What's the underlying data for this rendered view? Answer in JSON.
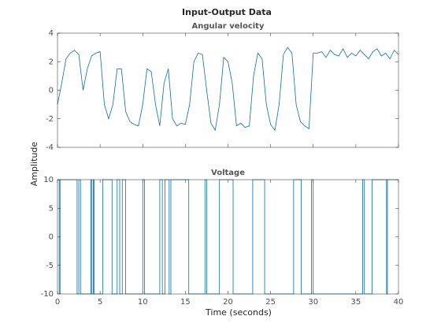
{
  "title": "Input-Output Data",
  "ylabel": "Amplitude",
  "xlabel": "Time (seconds)",
  "chart_data": [
    {
      "type": "line",
      "title": "Angular velocity",
      "color": "#0b6ea8",
      "x": [
        0,
        0.5,
        1,
        1.5,
        2,
        2.5,
        3,
        3.5,
        4,
        4.5,
        5,
        5.5,
        6,
        6.5,
        7,
        7.5,
        8,
        8.5,
        9,
        9.5,
        10,
        10.5,
        11,
        11.5,
        12,
        12.5,
        13,
        13.5,
        14,
        14.5,
        15,
        15.5,
        16,
        16.5,
        17,
        17.5,
        18,
        18.5,
        19,
        19.5,
        20,
        20.5,
        21,
        21.5,
        22,
        22.5,
        23,
        23.5,
        24,
        24.5,
        25,
        25.5,
        26,
        26.5,
        27,
        27.5,
        28,
        28.5,
        29,
        29.5,
        30,
        30.5,
        31,
        31.5,
        32,
        32.5,
        33,
        33.5,
        34,
        34.5,
        35,
        35.5,
        36,
        36.5,
        37,
        37.5,
        38,
        38.5,
        39,
        39.5,
        40
      ],
      "values": [
        -1,
        0.5,
        2.2,
        2.6,
        2.8,
        2.5,
        0,
        1.5,
        2.4,
        2.6,
        2.7,
        -1,
        -2,
        -1,
        1.5,
        1.5,
        -1.5,
        -2.2,
        -2.4,
        -2.5,
        -1,
        1.5,
        1.3,
        -1,
        -2.5,
        0.5,
        1.5,
        -2,
        -2.5,
        -2.3,
        -2.4,
        -1,
        2,
        2.6,
        2.5,
        0,
        -2.3,
        -2.8,
        -1,
        2.3,
        2,
        0.5,
        -2.5,
        -2.3,
        -2.6,
        -2.5,
        1,
        2.6,
        2.2,
        -1,
        -2.4,
        -2.8,
        -1,
        2.5,
        3,
        2.6,
        -1,
        -2.2,
        -2.5,
        -2.7,
        2.6,
        2.6,
        2.7,
        2.3,
        2.8,
        2.5,
        2.4,
        2.9,
        2.3,
        2.6,
        2.4,
        2.8,
        2.5,
        2.2,
        2.7,
        2.9,
        2.4,
        2.6,
        2.2,
        2.8,
        2.5
      ],
      "xlim": [
        0,
        40
      ],
      "xticks": [
        0,
        5,
        10,
        15,
        20,
        25,
        30,
        35,
        40
      ],
      "ylim": [
        -4,
        4
      ],
      "yticks": [
        -4,
        -2,
        0,
        2,
        4
      ]
    },
    {
      "type": "line",
      "title": "Voltage",
      "color": "#0b6ea8",
      "x": [
        0,
        0.2,
        0.2,
        0.3,
        0.3,
        2.3,
        2.3,
        2.5,
        2.5,
        2.7,
        2.7,
        3.9,
        3.9,
        4.0,
        4.0,
        4.2,
        4.2,
        4.3,
        4.3,
        5.3,
        5.3,
        6.4,
        6.4,
        7.0,
        7.0,
        7.3,
        7.3,
        7.6,
        7.6,
        8.0,
        8.0,
        10.0,
        10.0,
        10.2,
        10.2,
        12.0,
        12.0,
        12.3,
        12.3,
        12.6,
        12.6,
        13.1,
        13.1,
        13.3,
        13.3,
        15.4,
        15.4,
        17.3,
        17.3,
        17.5,
        17.5,
        19.0,
        19.0,
        20.6,
        20.6,
        22.9,
        22.9,
        24.3,
        24.3,
        27.7,
        27.7,
        28.6,
        28.6,
        29.8,
        29.8,
        30.0,
        30.0,
        35.8,
        35.8,
        36.0,
        36.0,
        36.9,
        36.9,
        38.6,
        38.6,
        38.7,
        38.7,
        40
      ],
      "values": [
        10,
        10,
        -10,
        -10,
        10,
        10,
        -10,
        -10,
        10,
        10,
        -10,
        -10,
        10,
        10,
        -10,
        -10,
        10,
        10,
        -10,
        -10,
        10,
        10,
        -10,
        -10,
        10,
        10,
        -10,
        -10,
        10,
        10,
        -10,
        -10,
        10,
        10,
        -10,
        -10,
        10,
        10,
        -10,
        -10,
        10,
        10,
        -10,
        -10,
        10,
        10,
        -10,
        -10,
        10,
        10,
        -10,
        -10,
        10,
        10,
        -10,
        -10,
        10,
        10,
        -10,
        -10,
        10,
        10,
        -10,
        -10,
        10,
        10,
        -10,
        -10,
        10,
        10,
        -10,
        -10,
        10,
        10,
        -10,
        -10,
        10,
        10
      ],
      "xlim": [
        0,
        40
      ],
      "xticks": [
        0,
        5,
        10,
        15,
        20,
        25,
        30,
        35,
        40
      ],
      "ylim": [
        -10,
        10
      ],
      "yticks": [
        -10,
        -5,
        0,
        5,
        10
      ]
    }
  ]
}
